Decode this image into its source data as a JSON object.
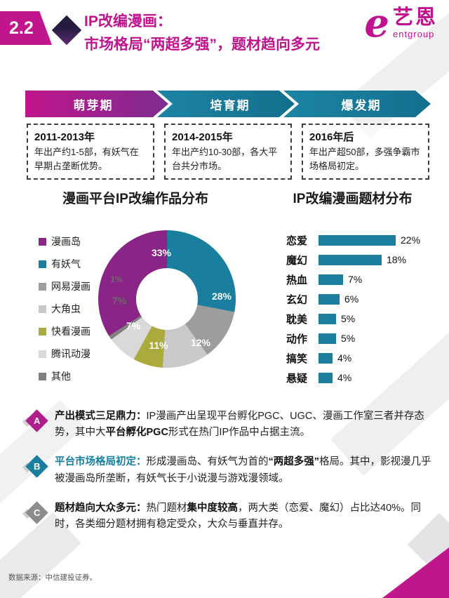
{
  "header": {
    "section_number": "2.2",
    "title_line1": "IP改编漫画：",
    "title_line2": "市场格局“两超多强”，题材趋向多元",
    "brand": {
      "logo_letter": "e",
      "name_cn": "艺恩",
      "name_en": "entgroup",
      "color": "#c0128e"
    }
  },
  "timeline": {
    "phases": [
      {
        "label": "萌芽期",
        "period": "2011-2013年",
        "desc": "年出产约1-5部，有妖气在早期占垄断优势。",
        "color": "#c0168c",
        "color2": "#7d2b90"
      },
      {
        "label": "培育期",
        "period": "2014-2015年",
        "desc": "年出产约10-30部，各大平台共分市场。",
        "color": "#1c84a3",
        "color2": "#146f8e"
      },
      {
        "label": "爆发期",
        "period": "2016年后",
        "desc": "年出产超50部，多强争霸市场格局初定。",
        "color": "#1c84a3",
        "color2": "#146f8e"
      }
    ]
  },
  "chart_data": [
    {
      "type": "pie",
      "donut": true,
      "title": "漫画平台IP改编作品分布",
      "categories": [
        "漫画岛",
        "有妖气",
        "网易漫画",
        "大角虫",
        "快看漫画",
        "腾讯动漫",
        "其他"
      ],
      "values": [
        33,
        28,
        12,
        11,
        7,
        7,
        1
      ],
      "value_labels": [
        "33%",
        "28%",
        "12%",
        "11%",
        "7%",
        "7%",
        "1%"
      ],
      "unit": "%",
      "colors": [
        "#8a2486",
        "#1a7f9e",
        "#9d9d9d",
        "#c9c9c9",
        "#abaa3c",
        "#d9d9d9",
        "#808080"
      ],
      "legend_position": "left"
    },
    {
      "type": "bar",
      "orientation": "horizontal",
      "title": "IP改编漫画题材分布",
      "categories": [
        "恋爱",
        "魔幻",
        "热血",
        "玄幻",
        "耽美",
        "动作",
        "搞笑",
        "悬疑"
      ],
      "values": [
        22,
        18,
        7,
        6,
        5,
        5,
        4,
        4
      ],
      "value_labels": [
        "22%",
        "18%",
        "7%",
        "6%",
        "5%",
        "5%",
        "4%",
        "4%"
      ],
      "unit": "%",
      "bar_color": "#1a7f9e",
      "xlim": [
        0,
        24
      ]
    }
  ],
  "insights": {
    "items": [
      {
        "letter": "A",
        "color": "#b01e8c",
        "lead": "产出模式三足鼎力：",
        "t1": "IP漫画产出呈现平台孵化PGC、UGC、漫画工作室三者并存态势，其中大",
        "b1": "平台孵化PGC",
        "t2": "形式在热门IP作品中占据主流。"
      },
      {
        "letter": "B",
        "color": "#1a7f9e",
        "lead": "平台市场格局初定：",
        "t1": "形成漫画岛、有妖气为首的",
        "b1": "“两超多强”",
        "t2": "格局。其中，影视漫几乎被漫画岛所垄断，有妖气长于小说漫与游戏漫领域。"
      },
      {
        "letter": "C",
        "color": "#8c8c8c",
        "lead": "题材趋向大众多元：",
        "t1": "热门题材",
        "b1": "集中度较高",
        "t2": "，两大类（恋爱、魔幻）占比达40%。同时，各类细分题材拥有稳定受众，大众与垂直并存。"
      }
    ]
  },
  "footer": {
    "source_note": "数据来源：中信建投证券。"
  }
}
